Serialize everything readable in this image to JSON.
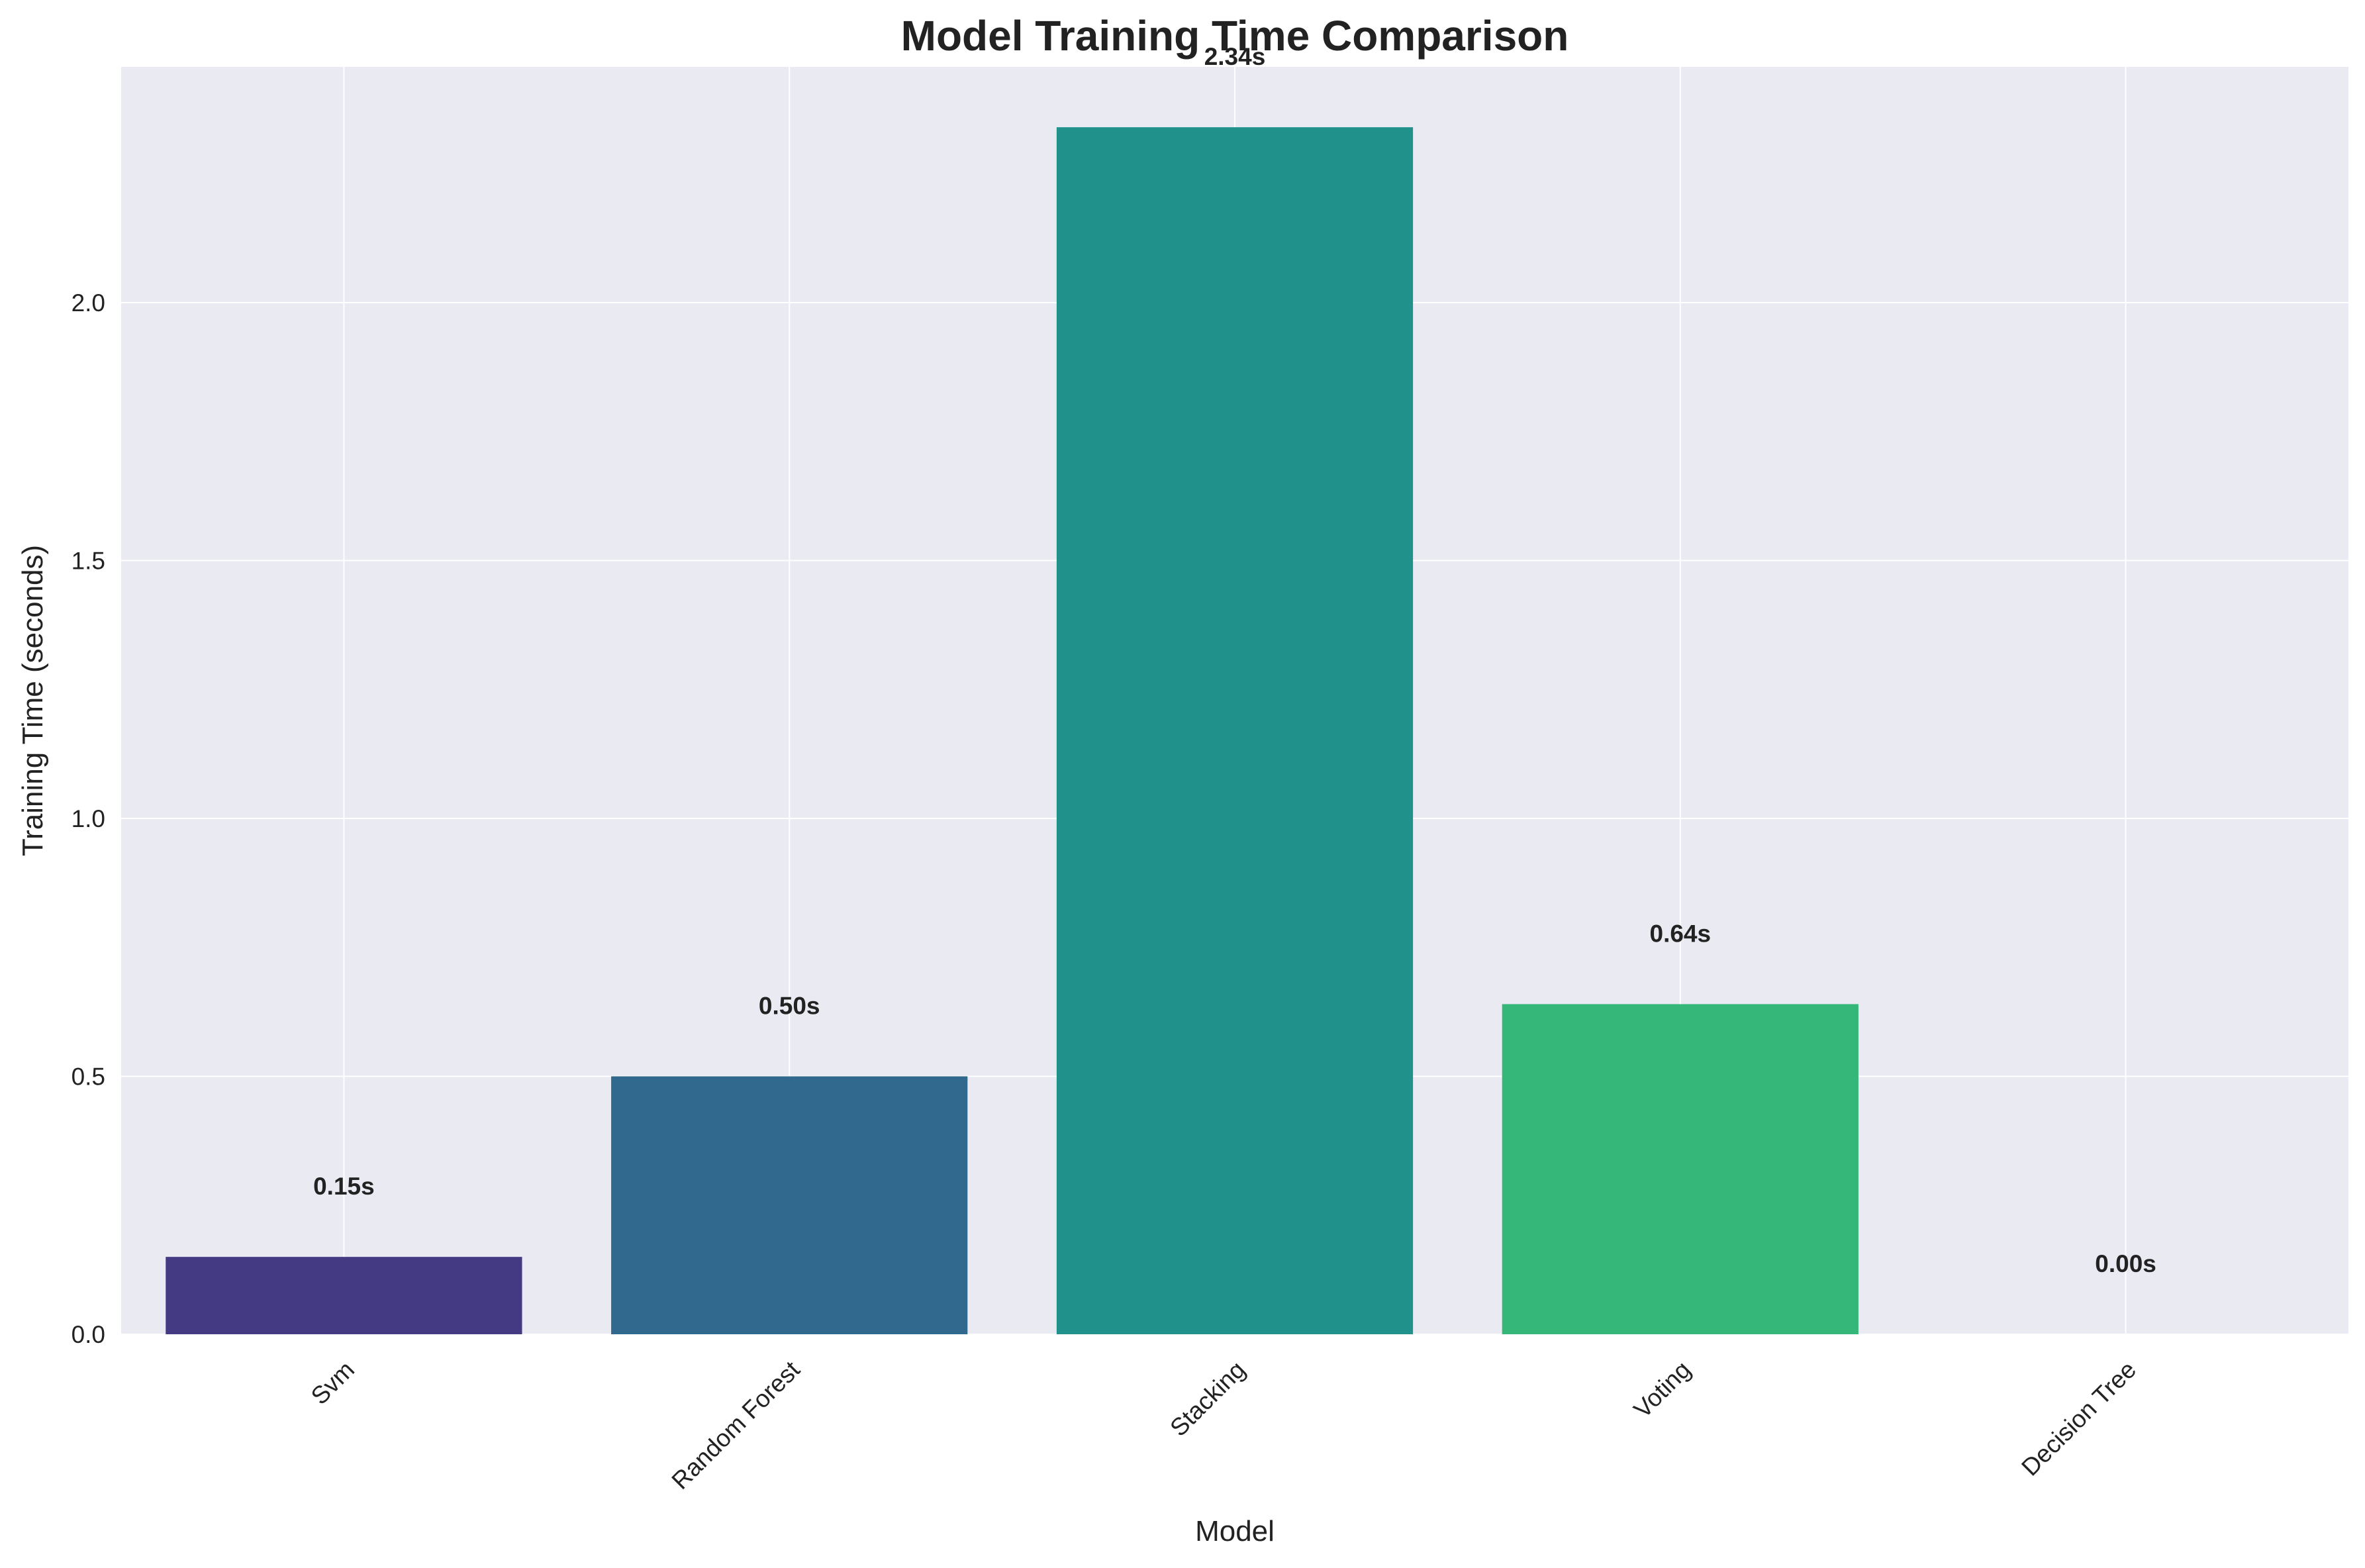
{
  "chart_data": {
    "type": "bar",
    "title": "Model Training Time Comparison",
    "xlabel": "Model",
    "ylabel": "Training Time (seconds)",
    "categories": [
      "Svm",
      "Random Forest",
      "Stacking",
      "Voting",
      "Decision Tree"
    ],
    "values": [
      0.15,
      0.5,
      2.34,
      0.64,
      0.0
    ],
    "data_labels": [
      "0.15s",
      "0.50s",
      "2.34s",
      "0.64s",
      "0.00s"
    ],
    "colors": [
      "#443983",
      "#31688e",
      "#21918c",
      "#35b779",
      "#fde725"
    ],
    "ylim": [
      0,
      2.457
    ],
    "yticks": [
      0.0,
      0.5,
      1.0,
      1.5,
      2.0
    ],
    "ytick_labels": [
      "0.0",
      "0.5",
      "1.0",
      "1.5",
      "2.0"
    ],
    "grid": true,
    "background_color": "#eaeaf2",
    "grid_color": "#ffffff",
    "legend": "none"
  }
}
